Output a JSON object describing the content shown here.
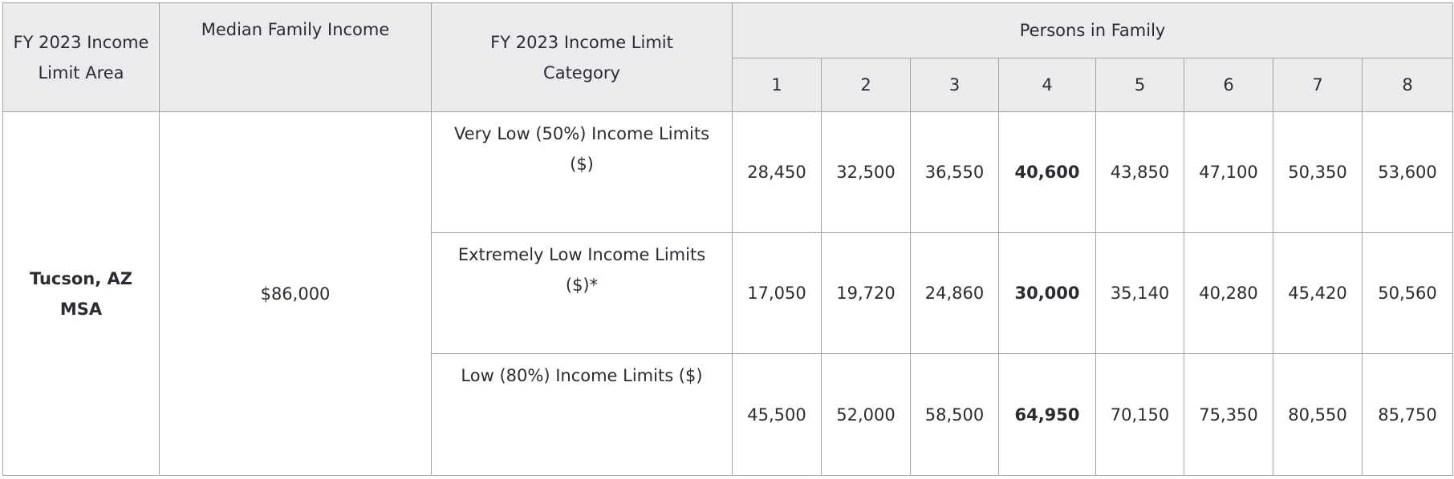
{
  "headers": {
    "area": "FY 2023 Income Limit Area",
    "median": "Median Family Income",
    "category": "FY 2023 Income Limit Category",
    "persons": "Persons in Family",
    "person_counts": [
      "1",
      "2",
      "3",
      "4",
      "5",
      "6",
      "7",
      "8"
    ]
  },
  "area": "Tucson, AZ MSA",
  "median_income": "$86,000",
  "rows": [
    {
      "category": "Very Low (50%) Income Limits ($)",
      "values": [
        "28,450",
        "32,500",
        "36,550",
        "40,600",
        "43,850",
        "47,100",
        "50,350",
        "53,600"
      ]
    },
    {
      "category": "Extremely Low Income Limits ($)*",
      "values": [
        "17,050",
        "19,720",
        "24,860",
        "30,000",
        "35,140",
        "40,280",
        "45,420",
        "50,560"
      ]
    },
    {
      "category": "Low (80%) Income Limits ($)",
      "values": [
        "45,500",
        "52,000",
        "58,500",
        "64,950",
        "70,150",
        "75,350",
        "80,550",
        "85,750"
      ]
    }
  ],
  "highlighted_column": "4"
}
